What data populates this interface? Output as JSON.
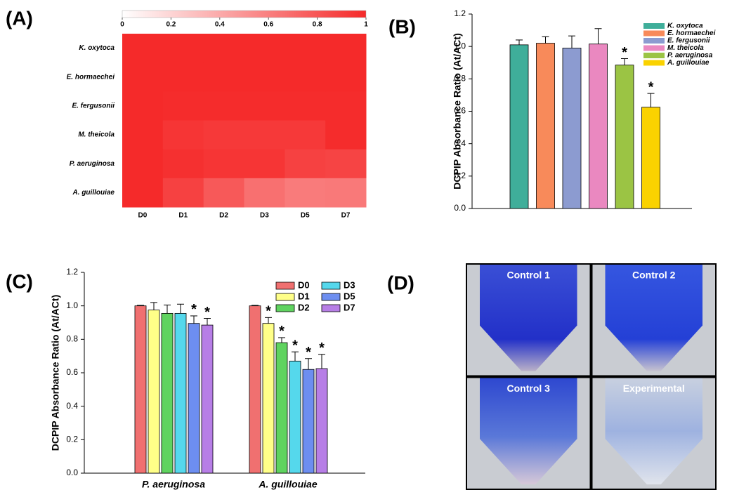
{
  "chart_data": [
    {
      "type": "heatmap",
      "panel_label": "(A)",
      "rows": [
        "K. oxytoca",
        "E. hormaechei",
        "E. fergusonii",
        "M. theicola",
        "P. aeruginosa",
        "A. guillouiae"
      ],
      "columns": [
        "D0",
        "D1",
        "D2",
        "D3",
        "D5",
        "D7"
      ],
      "values": [
        [
          1,
          1,
          1,
          1,
          1,
          1
        ],
        [
          1,
          1,
          1,
          1,
          1,
          1
        ],
        [
          1,
          0.99,
          0.99,
          0.99,
          0.99,
          0.99
        ],
        [
          1,
          0.95,
          0.93,
          0.93,
          0.93,
          0.99
        ],
        [
          1,
          0.97,
          0.95,
          0.95,
          0.89,
          0.88
        ],
        [
          1,
          0.89,
          0.78,
          0.67,
          0.62,
          0.63
        ]
      ],
      "colorbar_lim": [
        0,
        1
      ],
      "colorbar_ticks": [
        0,
        0.2,
        0.4,
        0.6,
        0.8,
        1
      ],
      "color": "#f52a2a"
    },
    {
      "type": "bar",
      "panel_label": "(B)",
      "y_label": "DCPIP Absorbance Ratio (At/ACt)",
      "categories": [
        "K. oxytoca",
        "E. hormaechei",
        "E. fergusonii",
        "M. theicola",
        "P. aeruginosa",
        "A. guillouiae"
      ],
      "values": [
        1.01,
        1.02,
        0.99,
        1.015,
        0.885,
        0.625
      ],
      "errors": [
        0.03,
        0.04,
        0.075,
        0.095,
        0.04,
        0.085
      ],
      "annotations": [
        null,
        null,
        null,
        null,
        "*",
        "*"
      ],
      "colors": [
        "#3fae9a",
        "#f88a5a",
        "#8c9bd0",
        "#ea88c0",
        "#9bc444",
        "#fad200"
      ],
      "ylim": [
        0,
        1.2
      ],
      "yticks": [
        {
          "value": 0,
          "label": "0.0"
        },
        0.2,
        0.4,
        0.6,
        0.8,
        {
          "value": 1,
          "label": "1.0"
        },
        1.2
      ]
    },
    {
      "type": "grouped-bar",
      "panel_label": "(C)",
      "y_label": "DCPIP Absorbance Ratio (At/ACt)",
      "categories": [
        "P. aeruginosa",
        "A. guillouiae"
      ],
      "series": [
        {
          "name": "D0",
          "color": "#f07070",
          "values": [
            1.0,
            1.0
          ],
          "errors": [
            0.003,
            0.003
          ],
          "annotations": [
            null,
            null
          ]
        },
        {
          "name": "D1",
          "color": "#ffff88",
          "values": [
            0.975,
            0.895
          ],
          "errors": [
            0.045,
            0.035
          ],
          "annotations": [
            null,
            "*"
          ]
        },
        {
          "name": "D2",
          "color": "#5fd35f",
          "values": [
            0.955,
            0.78
          ],
          "errors": [
            0.05,
            0.03
          ],
          "annotations": [
            null,
            "*"
          ]
        },
        {
          "name": "D3",
          "color": "#55d8ec",
          "values": [
            0.955,
            0.67
          ],
          "errors": [
            0.055,
            0.055
          ],
          "annotations": [
            null,
            "*"
          ]
        },
        {
          "name": "D5",
          "color": "#6d8ef0",
          "values": [
            0.895,
            0.62
          ],
          "errors": [
            0.045,
            0.065
          ],
          "annotations": [
            "*",
            "*"
          ]
        },
        {
          "name": "D7",
          "color": "#b77ee6",
          "values": [
            0.885,
            0.625
          ],
          "errors": [
            0.04,
            0.085
          ],
          "annotations": [
            "*",
            "*"
          ]
        }
      ],
      "ylim": [
        0,
        1.2
      ],
      "yticks": [
        {
          "value": 0,
          "label": "0.0"
        },
        0.2,
        0.4,
        0.6,
        0.8,
        {
          "value": 1,
          "label": "1.0"
        },
        1.2
      ]
    },
    {
      "type": "image-grid",
      "panel_label": "(D)",
      "images": [
        "Control 1",
        "Control 2",
        "Control 3",
        "Experimental"
      ]
    }
  ]
}
